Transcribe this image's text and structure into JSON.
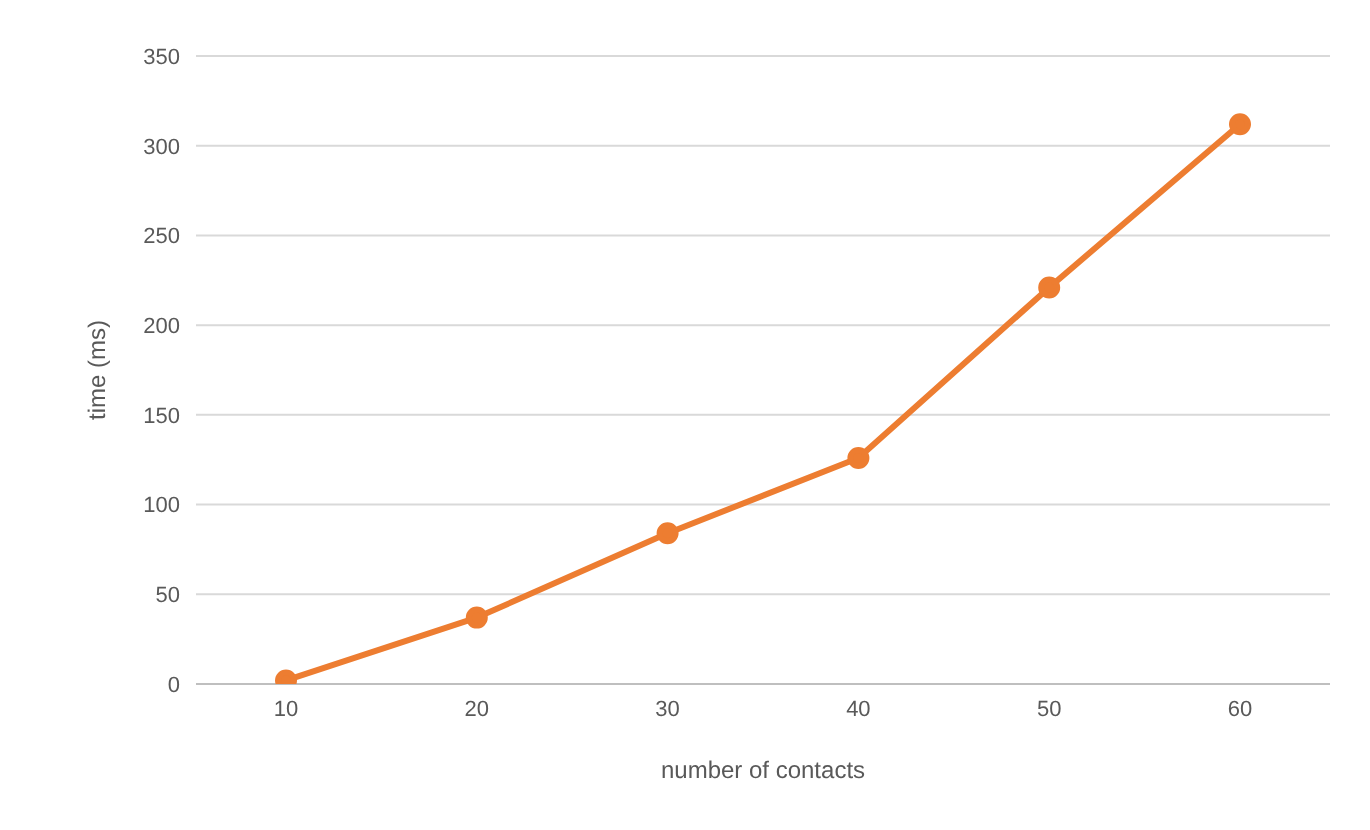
{
  "chart_data": {
    "type": "line",
    "xlabel": "number of contacts",
    "ylabel": "time (ms)",
    "categories": [
      "10",
      "20",
      "30",
      "40",
      "50",
      "60"
    ],
    "series": [
      {
        "color": "#ed7d31",
        "values": [
          2,
          37,
          84,
          126,
          221,
          312
        ]
      }
    ],
    "ylim": [
      0,
      350
    ],
    "yticks": [
      0,
      50,
      100,
      150,
      200,
      250,
      300,
      350
    ],
    "grid": "y",
    "marker": "circle",
    "line_style": "solid"
  }
}
